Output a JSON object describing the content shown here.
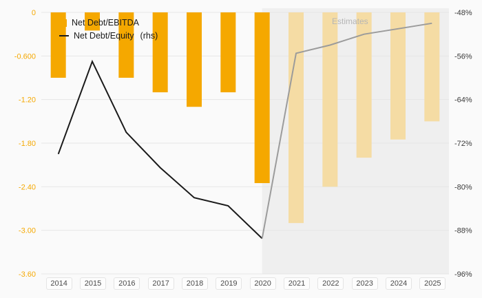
{
  "chart_data": {
    "type": "bar+line",
    "categories": [
      "2014",
      "2015",
      "2016",
      "2017",
      "2018",
      "2019",
      "2020",
      "2021",
      "2022",
      "2023",
      "2024",
      "2025"
    ],
    "estimates_label": "Estimates",
    "estimate_start_index": 7,
    "series": [
      {
        "name": "Net Debt/EBITDA",
        "type": "bar",
        "axis": "left",
        "values": [
          -0.9,
          -0.25,
          -0.9,
          -1.1,
          -1.3,
          -1.1,
          -2.35,
          -2.9,
          -2.4,
          -2.0,
          -1.75,
          -1.5
        ]
      },
      {
        "name": "Net Debt/Equity (rhs)",
        "type": "line",
        "axis": "right",
        "values": [
          -74,
          -57,
          -70,
          -76.5,
          -82,
          -83.5,
          -89.5,
          -55.5,
          -54,
          -52,
          -51,
          -50
        ]
      }
    ],
    "left_axis": {
      "min": -3.6,
      "max": 0,
      "tick_labels": [
        "0",
        "-0.600",
        "-1.20",
        "-1.80",
        "-2.40",
        "-3.00",
        "-3.60"
      ]
    },
    "right_axis": {
      "min": -96,
      "max": -48,
      "tick_labels": [
        "-48%",
        "-56%",
        "-64%",
        "-72%",
        "-80%",
        "-88%",
        "-96%"
      ]
    },
    "legend_position": "top-left",
    "grid": "horizontal"
  },
  "legend": {
    "bar_label": "Net Debt/EBITDA",
    "line_label": "Net Debt/Equity",
    "line_label_suffix": "(rhs)"
  },
  "colors": {
    "bar_actual": "#F5A800",
    "bar_estimate": "#F5DCA4",
    "line_actual": "#1a1a1a",
    "line_estimate": "#9b9b9b",
    "left_axis_text": "#F5A800",
    "right_axis_text": "#3a3a3a",
    "x_axis_text": "#4a4a4a",
    "estimates_text": "#b5b5b5",
    "grid": "#e6e6e6",
    "background": "#fafafa",
    "estimate_region": "#efefef"
  }
}
